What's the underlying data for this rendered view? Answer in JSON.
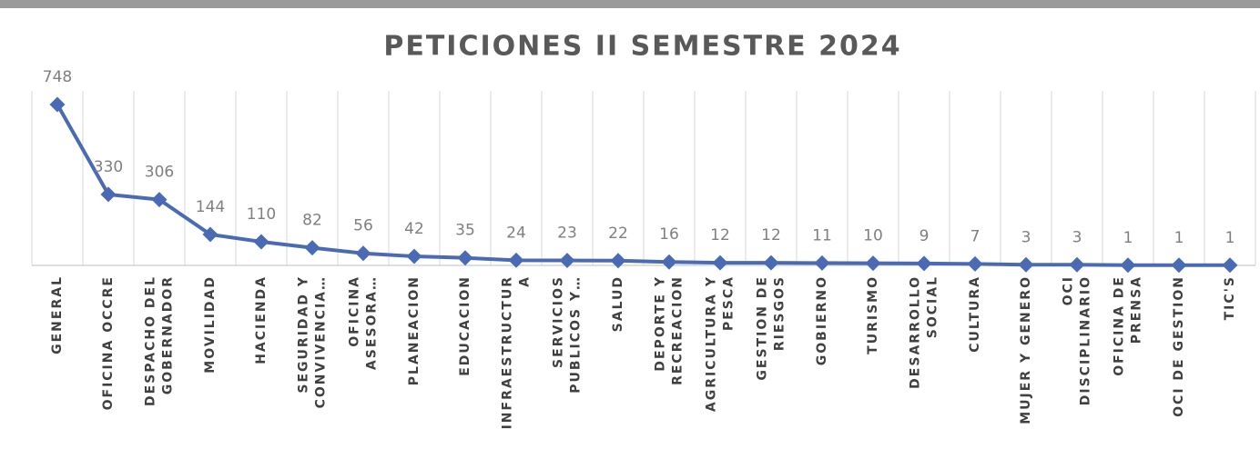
{
  "chart_data": {
    "type": "line",
    "title": "PETICIONES II SEMESTRE 2024",
    "categories": [
      [
        "GENERAL"
      ],
      [
        "OFICINA OCCRE"
      ],
      [
        "DESPACHO DEL",
        "GOBERNADOR"
      ],
      [
        "MOVILIDAD"
      ],
      [
        "HACIENDA"
      ],
      [
        "SEGURIDAD Y",
        "CONVIVENCIA…"
      ],
      [
        "OFICINA",
        "ASESORA…"
      ],
      [
        "PLANEACION"
      ],
      [
        "EDUCACION"
      ],
      [
        "INFRAESTRUCTUR",
        "A"
      ],
      [
        "SERVICIOS",
        "PUBLICOS Y…"
      ],
      [
        "SALUD"
      ],
      [
        "DEPORTE Y",
        "RECREACION"
      ],
      [
        "AGRICULTURA Y",
        "PESCA"
      ],
      [
        "GESTION DE",
        "RIESGOS"
      ],
      [
        "GOBIERNO"
      ],
      [
        "TURISMO"
      ],
      [
        "DESARROLLO",
        "SOCIAL"
      ],
      [
        "CULTURA"
      ],
      [
        "MUJER Y GENERO"
      ],
      [
        "OCI",
        "DISCIPLINARIO"
      ],
      [
        "OFICINA DE",
        "PRENSA"
      ],
      [
        "OCI DE GESTION"
      ],
      [
        "TIC'S"
      ]
    ],
    "values": [
      748,
      330,
      306,
      144,
      110,
      82,
      56,
      42,
      35,
      24,
      23,
      22,
      16,
      12,
      12,
      11,
      10,
      9,
      7,
      3,
      3,
      1,
      1,
      1
    ],
    "color": "#4a6bb4",
    "ylim": [
      0,
      748
    ]
  }
}
